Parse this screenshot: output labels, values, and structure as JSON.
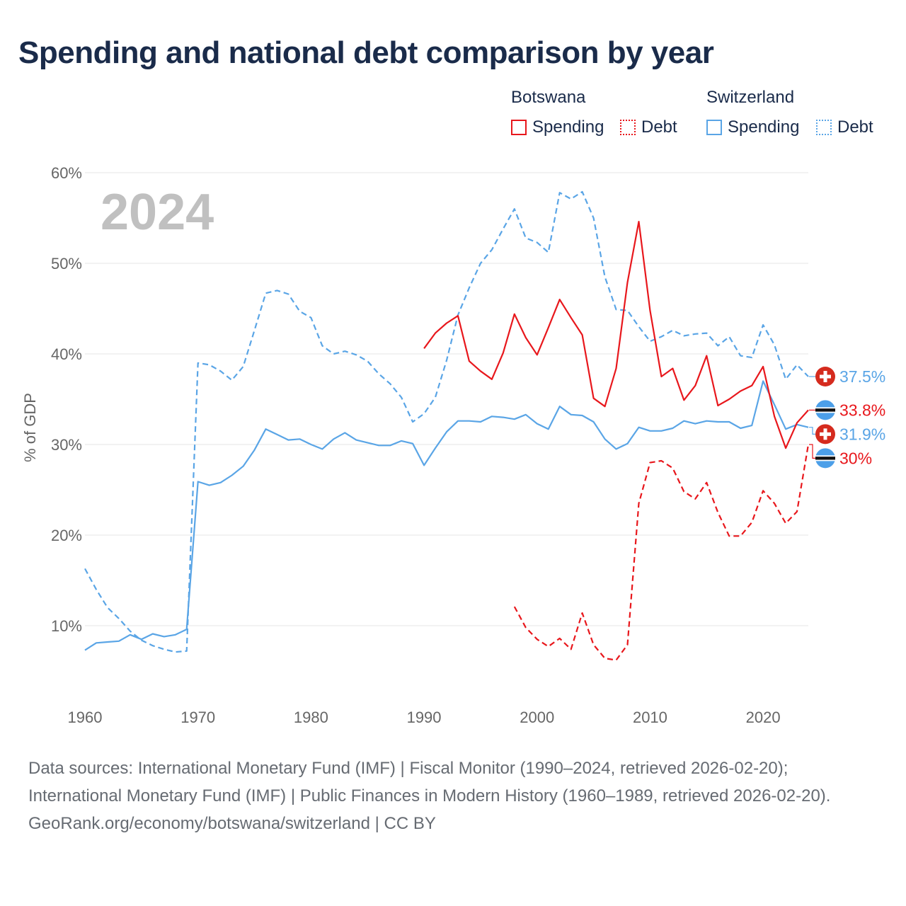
{
  "title": "Spending and national debt comparison by year",
  "legend": {
    "groups": [
      {
        "name": "Botswana",
        "items": [
          {
            "label": "Spending",
            "style": "solid",
            "color": "#e8171c"
          },
          {
            "label": "Debt",
            "style": "dotted",
            "color": "#e8171c"
          }
        ]
      },
      {
        "name": "Switzerland",
        "items": [
          {
            "label": "Spending",
            "style": "solid",
            "color": "#5aa5e6"
          },
          {
            "label": "Debt",
            "style": "dotted",
            "color": "#5aa5e6"
          }
        ]
      }
    ]
  },
  "colors": {
    "botswana": "#e8171c",
    "switzerland": "#5aa5e6",
    "axis_text": "#666666",
    "grid": "#e6e6e6",
    "year_label": "#c0c0c0"
  },
  "chart_data": {
    "type": "line",
    "year_label": "2024",
    "ylabel": "% of GDP",
    "xlim": [
      1960,
      2024
    ],
    "ylim": [
      0,
      60
    ],
    "x_ticks": [
      1960,
      1970,
      1980,
      1990,
      2000,
      2010,
      2020
    ],
    "x_tick_labels": [
      "1960",
      "1970",
      "1980",
      "1990",
      "2000",
      "2010",
      "2020"
    ],
    "y_ticks": [
      10,
      20,
      30,
      40,
      50,
      60
    ],
    "y_tick_labels": [
      "10%",
      "20%",
      "30%",
      "40%",
      "50%",
      "60%"
    ],
    "series": [
      {
        "name": "Switzerland Debt",
        "country": "switzerland",
        "style": "dashed",
        "x": [
          1960,
          1961,
          1962,
          1963,
          1964,
          1965,
          1966,
          1967,
          1968,
          1969,
          1970,
          1971,
          1972,
          1973,
          1974,
          1975,
          1976,
          1977,
          1978,
          1979,
          1980,
          1981,
          1982,
          1983,
          1984,
          1985,
          1986,
          1987,
          1988,
          1989,
          1990,
          1991,
          1992,
          1993,
          1994,
          1995,
          1996,
          1997,
          1998,
          1999,
          2000,
          2001,
          2002,
          2003,
          2004,
          2005,
          2006,
          2007,
          2008,
          2009,
          2010,
          2011,
          2012,
          2013,
          2014,
          2015,
          2016,
          2017,
          2018,
          2019,
          2020,
          2021,
          2022,
          2023,
          2024
        ],
        "values": [
          16.3,
          14,
          12,
          10.8,
          9.4,
          8.4,
          7.8,
          7.4,
          7.1,
          7.2,
          39,
          38.8,
          38.1,
          37.1,
          38.6,
          42.6,
          46.7,
          47,
          46.6,
          44.7,
          44,
          40.9,
          40,
          40.3,
          39.9,
          39.2,
          37.8,
          36.7,
          35.2,
          32.5,
          33.4,
          35.2,
          39.3,
          44.3,
          47.3,
          50,
          51.5,
          53.8,
          56,
          52.8,
          52.3,
          51.2,
          57.8,
          57.1,
          57.9,
          55,
          48.5,
          44.9,
          44.8,
          43,
          41.4,
          41.9,
          42.6,
          42,
          42.2,
          42.3,
          40.9,
          41.9,
          39.8,
          39.6,
          43.2,
          41,
          37.2,
          38.8,
          37.5
        ]
      },
      {
        "name": "Switzerland Spending",
        "country": "switzerland",
        "style": "solid",
        "x": [
          1960,
          1961,
          1962,
          1963,
          1964,
          1965,
          1966,
          1967,
          1968,
          1969,
          1970,
          1971,
          1972,
          1973,
          1974,
          1975,
          1976,
          1977,
          1978,
          1979,
          1980,
          1981,
          1982,
          1983,
          1984,
          1985,
          1986,
          1987,
          1988,
          1989,
          1990,
          1991,
          1992,
          1993,
          1994,
          1995,
          1996,
          1997,
          1998,
          1999,
          2000,
          2001,
          2002,
          2003,
          2004,
          2005,
          2006,
          2007,
          2008,
          2009,
          2010,
          2011,
          2012,
          2013,
          2014,
          2015,
          2016,
          2017,
          2018,
          2019,
          2020,
          2021,
          2022,
          2023,
          2024
        ],
        "values": [
          7.3,
          8.1,
          8.2,
          8.3,
          9,
          8.5,
          9.1,
          8.8,
          9,
          9.6,
          25.9,
          25.5,
          25.8,
          26.6,
          27.6,
          29.4,
          31.7,
          31.1,
          30.5,
          30.6,
          30,
          29.5,
          30.6,
          31.3,
          30.5,
          30.2,
          29.9,
          29.9,
          30.4,
          30.1,
          27.7,
          29.6,
          31.4,
          32.6,
          32.6,
          32.5,
          33.1,
          33,
          32.8,
          33.3,
          32.3,
          31.7,
          34.2,
          33.3,
          33.2,
          32.5,
          30.6,
          29.5,
          30.1,
          31.9,
          31.5,
          31.5,
          31.8,
          32.6,
          32.3,
          32.6,
          32.5,
          32.5,
          31.8,
          32.1,
          37,
          34.4,
          31.7,
          32.2,
          31.9
        ]
      },
      {
        "name": "Botswana Spending",
        "country": "botswana",
        "style": "solid",
        "x": [
          1990,
          1991,
          1992,
          1993,
          1994,
          1995,
          1996,
          1997,
          1998,
          1999,
          2000,
          2001,
          2002,
          2003,
          2004,
          2005,
          2006,
          2007,
          2008,
          2009,
          2010,
          2011,
          2012,
          2013,
          2014,
          2015,
          2016,
          2017,
          2018,
          2019,
          2020,
          2021,
          2022,
          2023,
          2024
        ],
        "values": [
          40.6,
          42.3,
          43.4,
          44.2,
          39.2,
          38.1,
          37.2,
          40.1,
          44.4,
          41.8,
          39.9,
          42.9,
          46,
          44,
          42.1,
          35.1,
          34.2,
          38.4,
          47.9,
          54.6,
          44.8,
          37.5,
          38.4,
          34.9,
          36.5,
          39.8,
          34.3,
          35,
          35.9,
          36.5,
          38.6,
          33.1,
          29.6,
          32.4,
          33.8
        ]
      },
      {
        "name": "Botswana Debt",
        "country": "botswana",
        "style": "dashed",
        "x": [
          1998,
          1999,
          2000,
          2001,
          2002,
          2003,
          2004,
          2005,
          2006,
          2007,
          2008,
          2009,
          2010,
          2011,
          2012,
          2013,
          2014,
          2015,
          2016,
          2017,
          2018,
          2019,
          2020,
          2021,
          2022,
          2023,
          2024
        ],
        "values": [
          12.1,
          9.8,
          8.5,
          7.7,
          8.6,
          7.4,
          11.4,
          7.9,
          6.4,
          6.2,
          7.9,
          23.5,
          28,
          28.2,
          27.4,
          24.8,
          24,
          25.8,
          22.5,
          19.9,
          19.9,
          21.4,
          24.9,
          23.5,
          21.3,
          22.6,
          30
        ]
      }
    ],
    "end_labels": [
      {
        "series": "Switzerland Debt",
        "text": "37.5%",
        "country": "switzerland",
        "value": 37.5
      },
      {
        "series": "Botswana Spending",
        "text": "33.8%",
        "country": "botswana",
        "value": 33.8
      },
      {
        "series": "Switzerland Spending",
        "text": "31.9%",
        "country": "switzerland",
        "value": 31.9
      },
      {
        "series": "Botswana Debt",
        "text": "30%",
        "country": "botswana",
        "value": 30
      }
    ]
  },
  "footer": {
    "sources": "Data sources: International Monetary Fund (IMF) | Fiscal Monitor (1990–2024, retrieved 2026-02-20); International Monetary Fund (IMF) | Public Finances in Modern History (1960–1989, retrieved 2026-02-20).",
    "credit": "GeoRank.org/economy/botswana/switzerland | CC BY"
  }
}
